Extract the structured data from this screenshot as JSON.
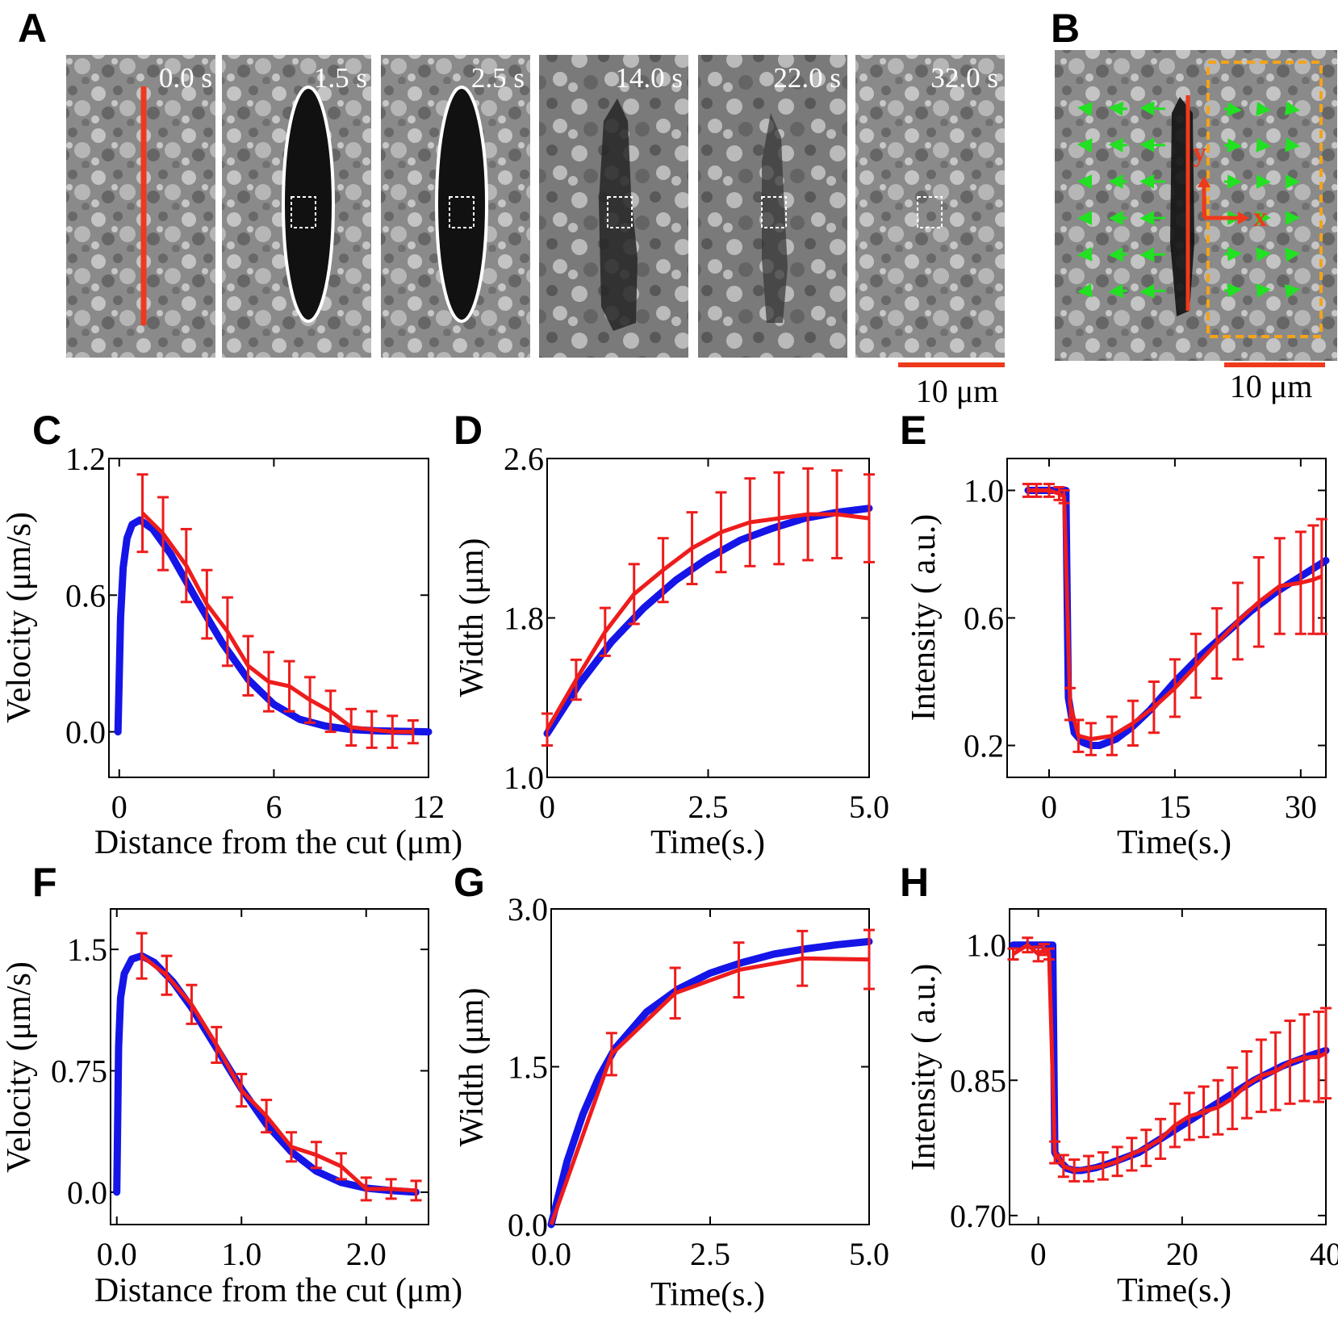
{
  "panels": {
    "A": {
      "label": "A",
      "timestamps": [
        "0.0 s",
        "1.5 s",
        "2.5 s",
        "14.0 s",
        "22.0 s",
        "32.0 s"
      ],
      "scale_bar": "10 μm"
    },
    "B": {
      "label": "B",
      "axis_x": "x",
      "axis_y": "y",
      "scale_bar": "10 μm"
    }
  },
  "colors": {
    "model": "#1515e8",
    "data": "#ee1c1c",
    "cut": "#ee3a1c",
    "arrows": "#22e022",
    "roi": "#f5a318"
  },
  "chart_data": [
    {
      "id": "C",
      "panel_label": "C",
      "type": "line",
      "xlabel": "Distance from the cut (μm)",
      "ylabel": "Velocity (μm/s)",
      "xlim": [
        -0.4,
        12
      ],
      "ylim": [
        -0.2,
        1.2
      ],
      "xticks": [
        0,
        6,
        12
      ],
      "xticklabels": [
        "0",
        "6",
        "12"
      ],
      "yticks": [
        0.0,
        0.6,
        1.2
      ],
      "yticklabels": [
        "0.0",
        "0.6",
        "1.2"
      ],
      "series": [
        {
          "role": "model",
          "x": [
            -0.05,
            0.05,
            0.15,
            0.3,
            0.5,
            0.8,
            1.3,
            2.0,
            3.0,
            4.0,
            5.0,
            6.0,
            7.0,
            8.0,
            9.0,
            10.0,
            11.0,
            12.0
          ],
          "y": [
            0.0,
            0.5,
            0.72,
            0.85,
            0.91,
            0.93,
            0.89,
            0.78,
            0.58,
            0.39,
            0.23,
            0.12,
            0.055,
            0.025,
            0.01,
            0.004,
            0.002,
            0.0
          ]
        },
        {
          "role": "data",
          "x": [
            0.9,
            1.7,
            2.6,
            3.4,
            4.2,
            5.0,
            5.8,
            6.6,
            7.4,
            8.2,
            9.0,
            9.8,
            10.6,
            11.4
          ],
          "y": [
            0.96,
            0.87,
            0.73,
            0.56,
            0.44,
            0.29,
            0.22,
            0.2,
            0.14,
            0.09,
            0.02,
            0.01,
            0.0,
            0.0
          ],
          "err": [
            0.17,
            0.16,
            0.16,
            0.15,
            0.15,
            0.13,
            0.13,
            0.11,
            0.1,
            0.09,
            0.08,
            0.08,
            0.07,
            0.05
          ]
        }
      ]
    },
    {
      "id": "D",
      "panel_label": "D",
      "type": "line",
      "xlabel": "Time(s.)",
      "ylabel": "Width (μm)",
      "xlim": [
        0,
        5.0
      ],
      "ylim": [
        1.0,
        2.6
      ],
      "xticks": [
        0,
        2.5,
        5.0
      ],
      "xticklabels": [
        "0",
        "2.5",
        "5.0"
      ],
      "yticks": [
        1.0,
        1.8,
        2.6
      ],
      "yticklabels": [
        "1.0",
        "1.8",
        "2.6"
      ],
      "series": [
        {
          "role": "model",
          "x": [
            0,
            0.5,
            1.0,
            1.5,
            2.0,
            2.5,
            3.0,
            3.5,
            4.0,
            4.5,
            5.0
          ],
          "y": [
            1.22,
            1.47,
            1.68,
            1.85,
            1.99,
            2.1,
            2.19,
            2.25,
            2.3,
            2.33,
            2.35
          ]
        },
        {
          "role": "data",
          "x": [
            0,
            0.45,
            0.9,
            1.35,
            1.8,
            2.25,
            2.7,
            3.15,
            3.6,
            4.05,
            4.5,
            5.0
          ],
          "y": [
            1.24,
            1.49,
            1.73,
            1.92,
            2.04,
            2.15,
            2.23,
            2.28,
            2.3,
            2.32,
            2.32,
            2.3
          ],
          "err": [
            0.08,
            0.1,
            0.12,
            0.15,
            0.16,
            0.18,
            0.2,
            0.22,
            0.23,
            0.23,
            0.22,
            0.22
          ]
        }
      ]
    },
    {
      "id": "E",
      "panel_label": "E",
      "type": "line",
      "xlabel": "Time(s.)",
      "ylabel": "Intensity ( a.u.)",
      "xlim": [
        -5,
        33
      ],
      "ylim": [
        0.1,
        1.1
      ],
      "xticks": [
        0,
        15,
        30
      ],
      "xticklabels": [
        "0",
        "15",
        "30"
      ],
      "yticks": [
        0.2,
        0.6,
        1.0
      ],
      "yticklabels": [
        "0.2",
        "0.6",
        "1.0"
      ],
      "series": [
        {
          "role": "model",
          "x": [
            -2.5,
            1.5,
            2.0,
            2.3,
            3.0,
            4.0,
            5.0,
            6.0,
            8.0,
            10.0,
            12.0,
            15.0,
            18.0,
            21.0,
            24.0,
            27.0,
            30.0,
            33.0
          ],
          "y": [
            1.0,
            1.0,
            1.0,
            0.35,
            0.24,
            0.21,
            0.2,
            0.2,
            0.22,
            0.26,
            0.31,
            0.4,
            0.48,
            0.55,
            0.62,
            0.68,
            0.73,
            0.78
          ]
        },
        {
          "role": "data",
          "x": [
            -2.5,
            -1.5,
            0,
            1.2,
            1.8,
            2.5,
            3.5,
            5.0,
            7.5,
            10.0,
            12.5,
            15.0,
            17.5,
            20.0,
            22.5,
            25.0,
            27.5,
            30.0,
            31.5,
            32.5
          ],
          "y": [
            1.0,
            1.0,
            1.0,
            0.99,
            0.98,
            0.33,
            0.23,
            0.22,
            0.23,
            0.27,
            0.32,
            0.38,
            0.45,
            0.52,
            0.59,
            0.65,
            0.7,
            0.71,
            0.72,
            0.73
          ],
          "err": [
            0.02,
            0.02,
            0.02,
            0.02,
            0.02,
            0.05,
            0.05,
            0.05,
            0.06,
            0.07,
            0.08,
            0.09,
            0.1,
            0.11,
            0.12,
            0.14,
            0.15,
            0.16,
            0.17,
            0.18
          ]
        }
      ]
    },
    {
      "id": "F",
      "panel_label": "F",
      "type": "line",
      "xlabel": "Distance from the cut (μm)",
      "ylabel": "Velocity (μm/s)",
      "xlim": [
        -0.05,
        2.5
      ],
      "ylim": [
        -0.2,
        1.75
      ],
      "xticks": [
        0.0,
        1.0,
        2.0
      ],
      "xticklabels": [
        "0.0",
        "1.0",
        "2.0"
      ],
      "yticks": [
        0.0,
        0.75,
        1.5
      ],
      "yticklabels": [
        "0.0",
        "0.75",
        "1.5"
      ],
      "series": [
        {
          "role": "model",
          "x": [
            0.0,
            0.015,
            0.03,
            0.06,
            0.12,
            0.2,
            0.3,
            0.45,
            0.6,
            0.8,
            1.0,
            1.2,
            1.4,
            1.6,
            1.8,
            2.0,
            2.2,
            2.4
          ],
          "y": [
            0.0,
            0.9,
            1.2,
            1.35,
            1.44,
            1.46,
            1.42,
            1.3,
            1.14,
            0.89,
            0.64,
            0.42,
            0.25,
            0.13,
            0.06,
            0.025,
            0.01,
            0.0
          ]
        },
        {
          "role": "data",
          "x": [
            0.2,
            0.4,
            0.6,
            0.8,
            1.0,
            1.2,
            1.4,
            1.6,
            1.8,
            2.0,
            2.2,
            2.4
          ],
          "y": [
            1.46,
            1.34,
            1.16,
            0.91,
            0.63,
            0.47,
            0.28,
            0.23,
            0.16,
            0.02,
            0.02,
            0.01
          ],
          "err": [
            0.14,
            0.12,
            0.12,
            0.11,
            0.1,
            0.1,
            0.09,
            0.08,
            0.08,
            0.07,
            0.06,
            0.06
          ]
        }
      ]
    },
    {
      "id": "G",
      "panel_label": "G",
      "type": "line",
      "xlabel": "Time(s.)",
      "ylabel": "Width (μm)",
      "xlim": [
        0,
        5.0
      ],
      "ylim": [
        0.0,
        3.0
      ],
      "xticks": [
        0.0,
        2.5,
        5.0
      ],
      "xticklabels": [
        "0.0",
        "2.5",
        "5.0"
      ],
      "yticks": [
        0.0,
        1.5,
        3.0
      ],
      "yticklabels": [
        "0.0",
        "1.5",
        "3.0"
      ],
      "series": [
        {
          "role": "model",
          "x": [
            0,
            0.25,
            0.5,
            0.75,
            1.0,
            1.5,
            2.0,
            2.5,
            3.0,
            3.5,
            4.0,
            4.5,
            5.0
          ],
          "y": [
            0.0,
            0.6,
            1.05,
            1.4,
            1.67,
            2.02,
            2.24,
            2.39,
            2.49,
            2.57,
            2.62,
            2.66,
            2.69
          ]
        },
        {
          "role": "data",
          "x": [
            0,
            0.95,
            1.95,
            2.95,
            3.95,
            5.0
          ],
          "y": [
            0.0,
            1.62,
            2.2,
            2.42,
            2.53,
            2.52
          ],
          "err": [
            0.0,
            0.2,
            0.24,
            0.26,
            0.26,
            0.28
          ]
        }
      ]
    },
    {
      "id": "H",
      "panel_label": "H",
      "type": "line",
      "xlabel": "Time(s.)",
      "ylabel": "Intensity ( a.u.)",
      "xlim": [
        -4,
        40
      ],
      "ylim": [
        0.69,
        1.04
      ],
      "xticks": [
        0,
        20,
        40
      ],
      "xticklabels": [
        "0",
        "20",
        "40"
      ],
      "yticks": [
        0.7,
        0.85,
        1.0
      ],
      "yticklabels": [
        "0.70",
        "0.85",
        "1.0"
      ],
      "series": [
        {
          "role": "model",
          "x": [
            -3.5,
            1.5,
            2.0,
            2.3,
            3.0,
            4.0,
            5.0,
            6.0,
            8.0,
            10.0,
            14.0,
            18.0,
            22.0,
            26.0,
            30.0,
            34.0,
            38.0,
            40.0
          ],
          "y": [
            1.0,
            1.0,
            1.0,
            0.77,
            0.76,
            0.752,
            0.75,
            0.75,
            0.753,
            0.758,
            0.77,
            0.79,
            0.81,
            0.83,
            0.85,
            0.866,
            0.878,
            0.883
          ]
        },
        {
          "role": "data",
          "x": [
            -3.5,
            -1.5,
            0,
            0.8,
            1.5,
            2.3,
            3.5,
            5.0,
            7.0,
            9.0,
            11.0,
            13.0,
            15.0,
            17.0,
            19.0,
            21.0,
            23.0,
            25.0,
            27.0,
            29.0,
            31.0,
            33.0,
            35.0,
            37.0,
            39.0,
            40.0
          ],
          "y": [
            0.99,
            1.0,
            0.99,
            0.995,
            0.99,
            0.77,
            0.755,
            0.75,
            0.752,
            0.755,
            0.76,
            0.768,
            0.775,
            0.785,
            0.8,
            0.81,
            0.815,
            0.82,
            0.83,
            0.845,
            0.855,
            0.86,
            0.87,
            0.875,
            0.876,
            0.88
          ],
          "err": [
            0.006,
            0.008,
            0.008,
            0.006,
            0.006,
            0.012,
            0.012,
            0.012,
            0.014,
            0.015,
            0.016,
            0.018,
            0.02,
            0.022,
            0.024,
            0.026,
            0.028,
            0.03,
            0.034,
            0.037,
            0.04,
            0.043,
            0.046,
            0.048,
            0.05,
            0.05
          ]
        }
      ]
    }
  ]
}
